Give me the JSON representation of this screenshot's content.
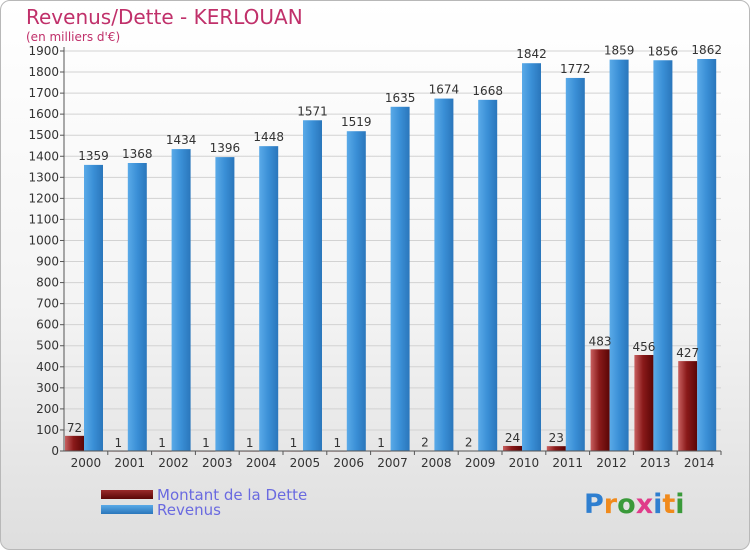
{
  "title": "Revenus/Dette - KERLOUAN",
  "subtitle": "(en milliers d'€)",
  "logo": {
    "text": "Proxiti",
    "letter_colors": [
      "#2f7fd0",
      "#f08a1c",
      "#3a9a3a",
      "#e03c8a",
      "#2f7fd0",
      "#f08a1c",
      "#3a9a3a"
    ]
  },
  "chart_data": {
    "type": "bar",
    "categories": [
      "2000",
      "2001",
      "2002",
      "2003",
      "2004",
      "2005",
      "2006",
      "2007",
      "2008",
      "2009",
      "2010",
      "2011",
      "2012",
      "2013",
      "2014"
    ],
    "series": [
      {
        "name": "Montant de la Dette",
        "color": "#7a0f0f",
        "values": [
          72,
          1,
          1,
          1,
          1,
          1,
          1,
          1,
          2,
          2,
          24,
          23,
          483,
          456,
          427
        ]
      },
      {
        "name": "Revenus",
        "color": "#3a8fd6",
        "values": [
          1359,
          1368,
          1434,
          1396,
          1448,
          1571,
          1519,
          1635,
          1674,
          1668,
          1842,
          1772,
          1859,
          1856,
          1862
        ]
      }
    ],
    "yticks": [
      0,
      100,
      200,
      300,
      400,
      500,
      600,
      700,
      800,
      900,
      1000,
      1100,
      1200,
      1300,
      1400,
      1500,
      1600,
      1700,
      1800,
      1900
    ],
    "ylim": [
      0,
      1900
    ],
    "grid": true,
    "legend_position": "bottom-left"
  }
}
